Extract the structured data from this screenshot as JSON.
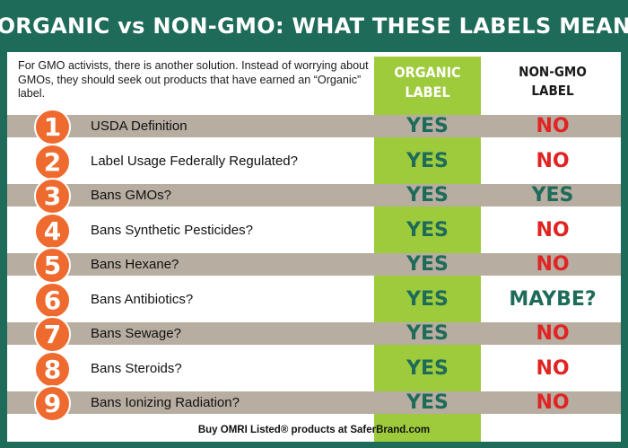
{
  "title": "ORGANIC vs NON-GMO: WHAT THESE LABELS MEAN",
  "intro": "For GMO activists, there is another solution. Instead of worrying about GMOs, they should seek out products that have earned an “Organic” label.",
  "columns": {
    "organic_line1": "ORGANIC",
    "organic_line2": "LABEL",
    "nongmo_line1": "NON-GMO",
    "nongmo_line2": "LABEL"
  },
  "colors": {
    "background": "#1f6b5a",
    "organic_column": "#9dcb3c",
    "row_shade": "#b7ada1",
    "number_circle": "#ef6a2e",
    "yes": "#1f6b5a",
    "no": "#e02424",
    "maybe": "#1f6b5a"
  },
  "rows": [
    {
      "number": "1",
      "label": "USDA Definition",
      "organic": "YES",
      "nongmo": "NO",
      "nongmo_status": "no"
    },
    {
      "number": "2",
      "label": "Label Usage Federally Regulated?",
      "organic": "YES",
      "nongmo": "NO",
      "nongmo_status": "no"
    },
    {
      "number": "3",
      "label": "Bans GMOs?",
      "organic": "YES",
      "nongmo": "YES",
      "nongmo_status": "yes"
    },
    {
      "number": "4",
      "label": "Bans Synthetic Pesticides?",
      "organic": "YES",
      "nongmo": "NO",
      "nongmo_status": "no"
    },
    {
      "number": "5",
      "label": "Bans Hexane?",
      "organic": "YES",
      "nongmo": "NO",
      "nongmo_status": "no"
    },
    {
      "number": "6",
      "label": "Bans Antibiotics?",
      "organic": "YES",
      "nongmo": "MAYBE?",
      "nongmo_status": "maybe"
    },
    {
      "number": "7",
      "label": "Bans Sewage?",
      "organic": "YES",
      "nongmo": "NO",
      "nongmo_status": "no"
    },
    {
      "number": "8",
      "label": "Bans Steroids?",
      "organic": "YES",
      "nongmo": "NO",
      "nongmo_status": "no"
    },
    {
      "number": "9",
      "label": "Bans Ionizing Radiation?",
      "organic": "YES",
      "nongmo": "NO",
      "nongmo_status": "no"
    }
  ],
  "footer": "Buy OMRI Listed® products at SaferBrand.com"
}
